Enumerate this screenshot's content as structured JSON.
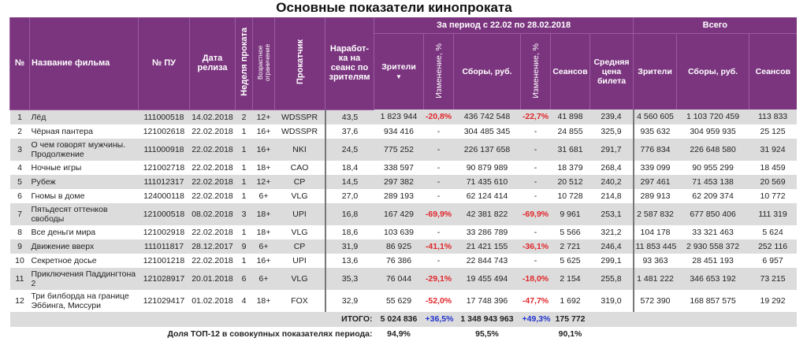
{
  "title": "Основные показатели кинопроката",
  "header": {
    "num": "№",
    "name": "Название фильма",
    "pu": "№ ПУ",
    "release": "Дата релиза",
    "week": "Неделя проката",
    "age": "Возрастное ограничение",
    "distributor": "Прокатчик",
    "per_session": "Наработ-ка на сеанс по зрителям",
    "period_group": "За период с 22.02 по 28.02.2018",
    "total_group": "Всего",
    "viewers": "Зрители",
    "sort_arrow": "▼",
    "change": "Изменение, %",
    "gross": "Сборы, руб.",
    "change2": "Изменение, %",
    "sessions": "Сеансов",
    "avg_price": "Средняя цена билета",
    "t_viewers": "Зрители",
    "t_gross": "Сборы, руб.",
    "t_sessions": "Сеансов"
  },
  "rows": [
    [
      "1",
      "Лёд",
      "111000518",
      "14.02.2018",
      "2",
      "12+",
      "WDSSPR",
      "43,5",
      "1 823 944",
      "-20,8%",
      "436 742 548",
      "-22,7%",
      "41 898",
      "239,4",
      "4 560 605",
      "1 103 720 459",
      "113 833"
    ],
    [
      "2",
      "Чёрная пантера",
      "121002618",
      "22.02.2018",
      "1",
      "16+",
      "WDSSPR",
      "37,6",
      "934 416",
      "-",
      "304 485 345",
      "-",
      "24 855",
      "325,9",
      "935 632",
      "304 959 935",
      "25 125"
    ],
    [
      "3",
      "О чем говорят мужчины. Продолжение",
      "111000918",
      "22.02.2018",
      "1",
      "16+",
      "NKI",
      "24,5",
      "775 252",
      "-",
      "226 137 658",
      "-",
      "31 681",
      "291,7",
      "776 834",
      "226 648 580",
      "31 924"
    ],
    [
      "4",
      "Ночные игры",
      "121002718",
      "22.02.2018",
      "1",
      "18+",
      "CAO",
      "18,4",
      "338 597",
      "-",
      "90 879 989",
      "-",
      "18 379",
      "268,4",
      "339 099",
      "90 955 299",
      "18 459"
    ],
    [
      "5",
      "Рубеж",
      "111012317",
      "22.02.2018",
      "1",
      "12+",
      "CP",
      "14,5",
      "297 382",
      "-",
      "71 435 610",
      "-",
      "20 512",
      "240,2",
      "297 461",
      "71 453 138",
      "20 569"
    ],
    [
      "6",
      "Гномы в доме",
      "124000118",
      "22.02.2018",
      "1",
      "6+",
      "VLG",
      "27,0",
      "289 193",
      "-",
      "62 124 414",
      "-",
      "10 728",
      "214,8",
      "289 913",
      "62 209 374",
      "10 772"
    ],
    [
      "7",
      "Пятьдесят оттенков свободы",
      "121000518",
      "08.02.2018",
      "3",
      "18+",
      "UPI",
      "16,8",
      "167 429",
      "-69,9%",
      "42 381 822",
      "-69,9%",
      "9 961",
      "253,1",
      "2 587 832",
      "677 850 406",
      "111 319"
    ],
    [
      "8",
      "Все деньги мира",
      "121002918",
      "22.02.2018",
      "1",
      "18+",
      "VLG",
      "18,6",
      "103 639",
      "-",
      "33 286 789",
      "-",
      "5 566",
      "321,2",
      "104 178",
      "33 321 463",
      "5 624"
    ],
    [
      "9",
      "Движение вверх",
      "111011817",
      "28.12.2017",
      "9",
      "6+",
      "CP",
      "31,9",
      "86 925",
      "-41,1%",
      "21 421 155",
      "-36,1%",
      "2 721",
      "246,4",
      "11 853 445",
      "2 930 558 372",
      "252 116"
    ],
    [
      "10",
      "Секретное досье",
      "121001218",
      "22.02.2018",
      "1",
      "16+",
      "UPI",
      "13,6",
      "76 386",
      "-",
      "22 844 743",
      "-",
      "5 625",
      "299,1",
      "93 363",
      "28 451 193",
      "6 957"
    ],
    [
      "11",
      "Приключения Паддингтона 2",
      "121028917",
      "20.01.2018",
      "6",
      "6+",
      "VLG",
      "35,3",
      "76 044",
      "-29,1%",
      "19 455 494",
      "-18,0%",
      "2 154",
      "255,8",
      "1 481 222",
      "346 653 192",
      "73 215"
    ],
    [
      "12",
      "Три билборда на границе Эббинга, Миссури",
      "121029417",
      "01.02.2018",
      "4",
      "18+",
      "FOX",
      "32,9",
      "55 629",
      "-52,0%",
      "17 748 396",
      "-47,7%",
      "1 692",
      "319,0",
      "572 390",
      "168 857 575",
      "19 292"
    ]
  ],
  "two_line_rows": [
    3,
    7,
    11,
    12
  ],
  "total": {
    "label": "ИТОГО:",
    "viewers": "5 024 836",
    "viewers_change": "+36,5%",
    "gross": "1 348 943 963",
    "gross_change": "+49,3%",
    "sessions": "175 772"
  },
  "share": {
    "label": "Доля ТОП-12 в совокупных показателях периода:",
    "viewers": "94,9%",
    "gross": "95,5%",
    "sessions": "90,1%"
  },
  "colors": {
    "header_bg": "#7b357f",
    "negative": "#e0262b",
    "positive": "#2233cc",
    "row_alt": "#dcdcdc"
  }
}
